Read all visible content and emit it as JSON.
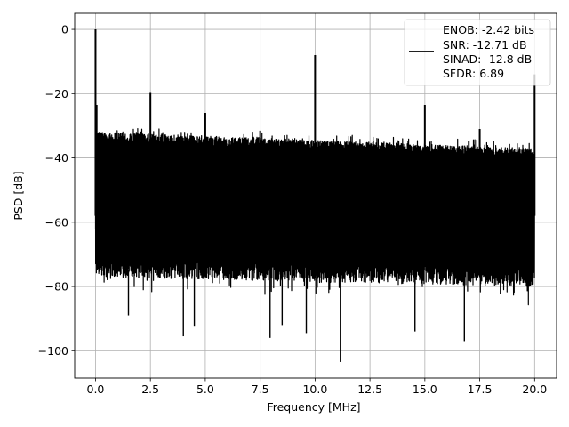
{
  "chart_data": {
    "type": "line",
    "title": "",
    "xlabel": "Frequency [MHz]",
    "ylabel": "PSD [dB]",
    "xlim": [
      -0.95,
      21.0
    ],
    "ylim": [
      -108.5,
      5.0
    ],
    "xticks": [
      0.0,
      2.5,
      5.0,
      7.5,
      10.0,
      12.5,
      15.0,
      17.5,
      20.0
    ],
    "xtick_labels": [
      "0.0",
      "2.5",
      "5.0",
      "7.5",
      "10.0",
      "12.5",
      "15.0",
      "17.5",
      "20.0"
    ],
    "yticks": [
      0,
      -20,
      -40,
      -60,
      -80,
      -100
    ],
    "ytick_labels": [
      "0",
      "−20",
      "−40",
      "−60",
      "−80",
      "−100"
    ],
    "grid": true,
    "legend_position": "top-right",
    "series": [
      {
        "name": "ENOB: -2.42 bits\nSNR: -12.71 dB\nSINAD: -12.8 dB\nSFDR: 6.89",
        "color": "#000000",
        "noise_floor_top_db": [
          -32,
          -37
        ],
        "noise_floor_bottom_db": [
          -77,
          -80
        ],
        "spikes": [
          {
            "x": 0.0,
            "y": 0.0
          },
          {
            "x": 0.05,
            "y": -23.5
          },
          {
            "x": 2.5,
            "y": -19.5
          },
          {
            "x": 5.0,
            "y": -26.0
          },
          {
            "x": 7.5,
            "y": -31.5
          },
          {
            "x": 10.0,
            "y": -8.0
          },
          {
            "x": 15.0,
            "y": -23.5
          },
          {
            "x": 17.5,
            "y": -31.0
          },
          {
            "x": 20.0,
            "y": -14.0
          }
        ],
        "dips": [
          {
            "x": 11.15,
            "y": -103.5
          },
          {
            "x": 16.8,
            "y": -97.0
          },
          {
            "x": 4.0,
            "y": -95.5
          },
          {
            "x": 7.95,
            "y": -96.0
          },
          {
            "x": 9.6,
            "y": -94.5
          },
          {
            "x": 14.55,
            "y": -94.0
          },
          {
            "x": 4.5,
            "y": -92.5
          },
          {
            "x": 8.5,
            "y": -92.0
          },
          {
            "x": 1.5,
            "y": -89.0
          }
        ]
      }
    ],
    "legend_lines": [
      "ENOB: -2.42 bits",
      "SNR: -12.71 dB",
      "SINAD: -12.8 dB",
      "SFDR: 6.89"
    ]
  }
}
